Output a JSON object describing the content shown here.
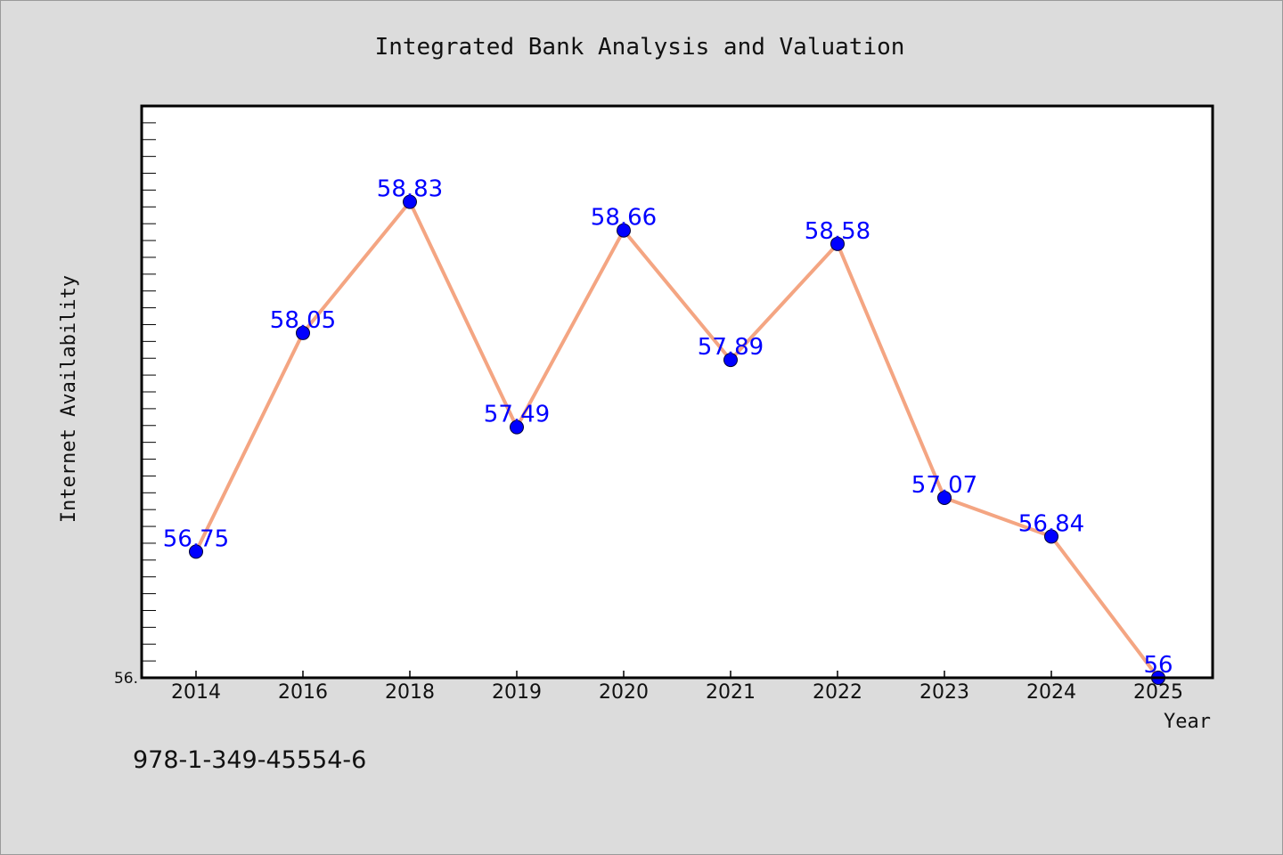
{
  "chart_data": {
    "type": "line",
    "title": "Integrated Bank Analysis and Valuation",
    "xlabel": "Year",
    "ylabel": "Internet Availability",
    "categories": [
      "2014",
      "2016",
      "2018",
      "2019",
      "2020",
      "2021",
      "2022",
      "2023",
      "2024",
      "2025"
    ],
    "values": [
      56.75,
      58.05,
      58.83,
      57.49,
      58.66,
      57.89,
      58.58,
      57.07,
      56.84,
      56
    ],
    "data_labels": [
      "56.75",
      "58.05",
      "58.83",
      "57.49",
      "58.66",
      "57.89",
      "58.58",
      "57.07",
      "56.84",
      "56"
    ],
    "ylim": [
      56,
      59.4
    ],
    "ytick_label": "56.",
    "grid": false,
    "line_color": "#f4a582",
    "marker_color": "#0000ff",
    "label_color": "#0000ff"
  },
  "footer_text": "978-1-349-45554-6"
}
